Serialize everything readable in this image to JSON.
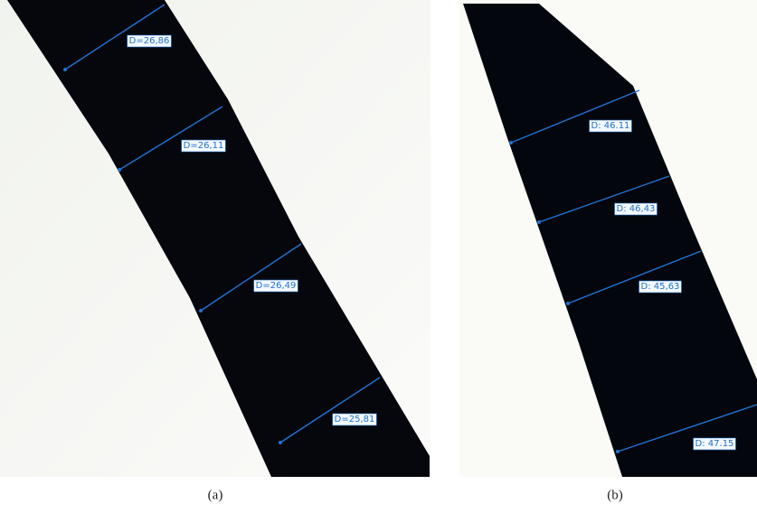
{
  "panels": [
    {
      "caption": "(a)",
      "measurements": [
        "D=26,86",
        "D=26,11",
        "D=26,49",
        "D=25,81"
      ]
    },
    {
      "caption": "(b)",
      "measurements": [
        "D: 46.11",
        "D: 46,43",
        "D: 45,63",
        "D: 47.15"
      ]
    }
  ]
}
